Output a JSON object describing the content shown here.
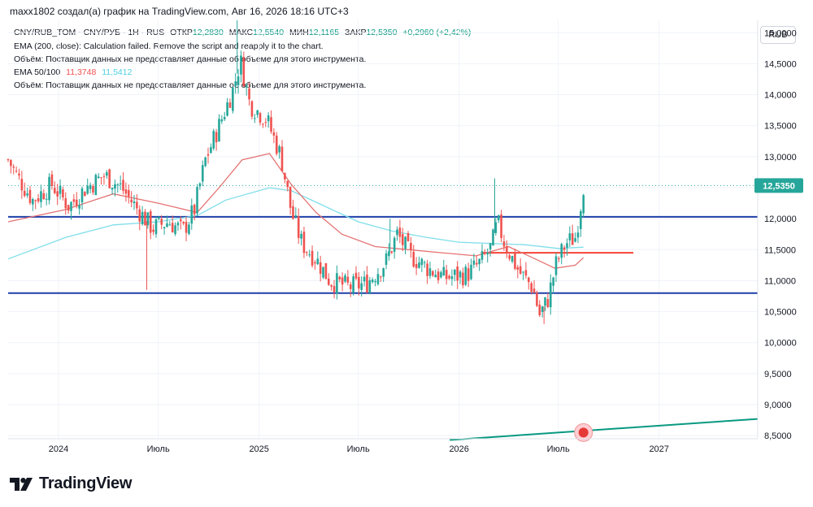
{
  "header": {
    "byline": "maxx1802 создал(а) график на TradingView.com, Авг 16, 2026 18:16 UTC+3"
  },
  "legend": {
    "symbol": "CNY/RUB_TOM - CNY/РУБ · 1H · RUS",
    "open_label": "ОТКР",
    "open": "12,2830",
    "high_label": "МАКС",
    "high": "12,5540",
    "low_label": "МИН",
    "low": "12,1165",
    "close_label": "ЗАКР",
    "close": "12,5350",
    "change": "+0,2960 (+2,42%)",
    "ema200": "EMA (200, close): Calculation failed. Remove the script and reapply it to the chart.",
    "volume1": "Объём: Поставщик данных не предоставляет данные об объеме для этого инструмента.",
    "ema_label": "EMA 50/100",
    "ema50_value": "11,3748",
    "ema100_value": "11,5412",
    "volume2": "Объём: Поставщик данных не предоставляет данные об объеме для этого инструмента."
  },
  "currency_button": "RUB",
  "price_badge": "12,5350",
  "logo_text": "TradingView",
  "colors": {
    "up": "#26a69a",
    "down": "#ef5350",
    "ema50": "#e57373",
    "ema100": "#80deea",
    "hline": "#1e3fa8",
    "resistance": "#f44336",
    "trend": "#089981",
    "badge": "#26a69a"
  },
  "chart_data": {
    "type": "candlestick",
    "y_ticks": [
      "15,0000",
      "14,5000",
      "14,0000",
      "13,5000",
      "13,0000",
      "12,5000",
      "12,0000",
      "11,5000",
      "11,0000",
      "10,5000",
      "10,0000",
      "9,5000",
      "9,0000",
      "8,5000"
    ],
    "x_ticks": [
      "2024",
      "Июль",
      "2025",
      "Июль",
      "2026",
      "Июль",
      "2027"
    ],
    "ylim": [
      8.45,
      15.2
    ],
    "x_range": [
      "2023-10-01",
      "2027-06-30"
    ],
    "last_price": 12.535,
    "horizontal_lines": [
      {
        "y": 12.03,
        "x_from": "2023-10-01",
        "x_to": "2027-06-30",
        "color": "#1e3fa8"
      },
      {
        "y": 10.8,
        "x_from": "2023-10-01",
        "x_to": "2027-06-30",
        "color": "#1e3fa8"
      },
      {
        "y": 11.45,
        "x_from": "2026-02-10",
        "x_to": "2026-11-15",
        "color": "#f44336"
      }
    ],
    "trend_line": {
      "from": [
        "2025-12-15",
        8.43
      ],
      "to": [
        "2027-06-30",
        8.77
      ]
    },
    "marker": {
      "x": "2026-08-16",
      "y": 8.55
    },
    "anchors": [
      [
        "2023-10-01",
        12.95
      ],
      [
        "2023-10-20",
        12.65
      ],
      [
        "2023-11-15",
        12.3
      ],
      [
        "2023-12-20",
        12.55
      ],
      [
        "2024-01-20",
        12.2
      ],
      [
        "2024-02-20",
        12.5
      ],
      [
        "2024-03-25",
        12.7
      ],
      [
        "2024-04-25",
        12.5
      ],
      [
        "2024-05-20",
        12.2
      ],
      [
        "2024-06-20",
        11.85
      ],
      [
        "2024-07-20",
        11.95
      ],
      [
        "2024-08-15",
        11.8
      ],
      [
        "2024-09-05",
        12.15
      ],
      [
        "2024-09-25",
        12.95
      ],
      [
        "2024-10-20",
        13.5
      ],
      [
        "2024-11-15",
        14.1
      ],
      [
        "2024-11-28",
        14.55
      ],
      [
        "2024-12-15",
        13.85
      ],
      [
        "2025-01-15",
        13.6
      ],
      [
        "2025-02-10",
        13.0
      ],
      [
        "2025-03-01",
        12.1
      ],
      [
        "2025-03-20",
        11.6
      ],
      [
        "2025-04-15",
        11.35
      ],
      [
        "2025-05-10",
        11.0
      ],
      [
        "2025-06-15",
        10.9
      ],
      [
        "2025-07-15",
        10.95
      ],
      [
        "2025-08-20",
        11.3
      ],
      [
        "2025-09-10",
        11.75
      ],
      [
        "2025-10-05",
        11.4
      ],
      [
        "2025-11-05",
        11.2
      ],
      [
        "2025-12-05",
        11.05
      ],
      [
        "2026-01-15",
        11.1
      ],
      [
        "2026-02-10",
        11.3
      ],
      [
        "2026-03-01",
        11.55
      ],
      [
        "2026-03-12",
        11.95
      ],
      [
        "2026-03-25",
        11.6
      ],
      [
        "2026-04-20",
        11.15
      ],
      [
        "2026-05-15",
        10.9
      ],
      [
        "2026-05-28",
        10.45
      ],
      [
        "2026-06-12",
        10.7
      ],
      [
        "2026-06-28",
        11.3
      ],
      [
        "2026-07-15",
        11.6
      ],
      [
        "2026-08-01",
        11.7
      ],
      [
        "2026-08-08",
        12.05
      ],
      [
        "2026-08-16",
        12.53
      ]
    ],
    "wicks": [
      [
        "2024-06-10",
        10.85
      ],
      [
        "2024-11-22",
        15.55
      ],
      [
        "2026-03-07",
        12.65
      ],
      [
        "2025-08-28",
        12.0
      ],
      [
        "2026-06-05",
        10.3
      ]
    ],
    "ema50": [
      [
        "2023-10-01",
        11.95
      ],
      [
        "2024-01-15",
        12.15
      ],
      [
        "2024-04-10",
        12.4
      ],
      [
        "2024-07-01",
        12.25
      ],
      [
        "2024-09-10",
        12.1
      ],
      [
        "2024-10-20",
        12.5
      ],
      [
        "2024-12-01",
        12.95
      ],
      [
        "2025-01-20",
        13.05
      ],
      [
        "2025-03-01",
        12.55
      ],
      [
        "2025-04-15",
        12.1
      ],
      [
        "2025-06-01",
        11.75
      ],
      [
        "2025-08-01",
        11.55
      ],
      [
        "2025-10-01",
        11.5
      ],
      [
        "2025-12-01",
        11.45
      ],
      [
        "2026-02-01",
        11.4
      ],
      [
        "2026-04-01",
        11.55
      ],
      [
        "2026-05-20",
        11.35
      ],
      [
        "2026-06-25",
        11.2
      ],
      [
        "2026-08-01",
        11.25
      ],
      [
        "2026-08-16",
        11.37
      ]
    ],
    "ema100": [
      [
        "2023-10-01",
        11.35
      ],
      [
        "2024-01-15",
        11.7
      ],
      [
        "2024-04-10",
        11.9
      ],
      [
        "2024-07-01",
        11.95
      ],
      [
        "2024-09-10",
        12.05
      ],
      [
        "2024-11-01",
        12.3
      ],
      [
        "2025-01-20",
        12.5
      ],
      [
        "2025-03-01",
        12.45
      ],
      [
        "2025-05-01",
        12.2
      ],
      [
        "2025-07-01",
        11.95
      ],
      [
        "2025-09-01",
        11.8
      ],
      [
        "2025-11-01",
        11.7
      ],
      [
        "2026-01-01",
        11.62
      ],
      [
        "2026-03-01",
        11.6
      ],
      [
        "2026-05-01",
        11.58
      ],
      [
        "2026-07-01",
        11.52
      ],
      [
        "2026-08-16",
        11.54
      ]
    ]
  }
}
